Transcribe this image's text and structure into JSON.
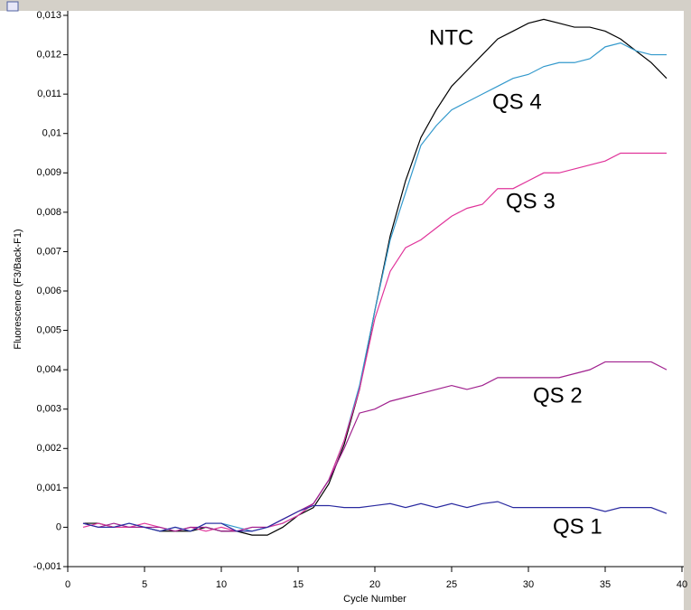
{
  "chart_data": {
    "type": "line",
    "y_label": "Fluorescence (F3/Back-F1)",
    "x_label": "Cycle Number",
    "x": [
      1,
      2,
      3,
      4,
      5,
      6,
      7,
      8,
      9,
      10,
      11,
      12,
      13,
      14,
      15,
      16,
      17,
      18,
      19,
      20,
      21,
      22,
      23,
      24,
      25,
      26,
      27,
      28,
      29,
      30,
      31,
      32,
      33,
      34,
      35,
      36,
      37,
      38,
      39
    ],
    "xlim": [
      0,
      40
    ],
    "xticks": [
      0,
      5,
      10,
      15,
      20,
      25,
      30,
      35,
      40
    ],
    "ylim": [
      -0.001,
      0.013
    ],
    "yticks": [
      {
        "value": -0.001,
        "label": "-0,001"
      },
      0,
      {
        "value": 0.001,
        "label": "0,001"
      },
      {
        "value": 0.002,
        "label": "0,002"
      },
      {
        "value": 0.003,
        "label": "0,003"
      },
      {
        "value": 0.004,
        "label": "0,004"
      },
      {
        "value": 0.005,
        "label": "0,005"
      },
      {
        "value": 0.006,
        "label": "0,006"
      },
      {
        "value": 0.007,
        "label": "0,007"
      },
      {
        "value": 0.008,
        "label": "0,008"
      },
      {
        "value": 0.009,
        "label": "0,009"
      },
      {
        "value": 0.01,
        "label": "0,01"
      },
      {
        "value": 0.011,
        "label": "0,011"
      },
      {
        "value": 0.012,
        "label": "0,012"
      },
      {
        "value": 0.013,
        "label": "0,013"
      }
    ],
    "grid": false,
    "series": [
      {
        "name": "NTC",
        "color": "#000000",
        "values": [
          0.0001,
          0.0001,
          0.0,
          0.0,
          0.0,
          -0.0001,
          -0.0001,
          -0.0001,
          0.0,
          -0.0001,
          -0.0001,
          -0.0002,
          -0.0002,
          0.0,
          0.0003,
          0.0005,
          0.0011,
          0.0021,
          0.0035,
          0.0055,
          0.0074,
          0.0088,
          0.0099,
          0.0106,
          0.0112,
          0.0116,
          0.012,
          0.0124,
          0.0126,
          0.0128,
          0.0129,
          0.0128,
          0.0127,
          0.0127,
          0.0126,
          0.0124,
          0.0121,
          0.0118,
          0.0114
        ]
      },
      {
        "name": "QS 4",
        "color": "#3399cc",
        "values": [
          0.0001,
          0.0,
          0.0,
          0.0001,
          0.0,
          -0.0001,
          0.0,
          -0.0001,
          0.0001,
          0.0001,
          0.0,
          -0.0001,
          0.0,
          0.0001,
          0.0003,
          0.0006,
          0.0012,
          0.0022,
          0.0036,
          0.0055,
          0.0073,
          0.0085,
          0.0097,
          0.0102,
          0.0106,
          0.0108,
          0.011,
          0.0112,
          0.0114,
          0.0115,
          0.0117,
          0.0118,
          0.0118,
          0.0119,
          0.0122,
          0.0123,
          0.0121,
          0.012,
          0.012
        ]
      },
      {
        "name": "QS 3",
        "color": "#e0339a",
        "values": [
          0.0,
          0.0001,
          0.0,
          0.0,
          0.0001,
          0.0,
          -0.0001,
          0.0,
          -0.0001,
          0.0,
          -0.0001,
          0.0,
          0.0,
          0.0001,
          0.0003,
          0.0006,
          0.0012,
          0.0022,
          0.0035,
          0.0053,
          0.0065,
          0.0071,
          0.0073,
          0.0076,
          0.0079,
          0.0081,
          0.0082,
          0.0086,
          0.0086,
          0.0088,
          0.009,
          0.009,
          0.0091,
          0.0092,
          0.0093,
          0.0095,
          0.0095,
          0.0095,
          0.0095
        ]
      },
      {
        "name": "QS 2",
        "color": "#a0208e",
        "values": [
          0.0001,
          0.0,
          0.0001,
          0.0,
          0.0,
          0.0,
          -0.0001,
          0.0,
          0.0,
          -0.0001,
          -0.0001,
          0.0,
          0.0,
          0.0002,
          0.0004,
          0.0006,
          0.0012,
          0.002,
          0.0029,
          0.003,
          0.0032,
          0.0033,
          0.0034,
          0.0035,
          0.0036,
          0.0035,
          0.0036,
          0.0038,
          0.0038,
          0.0038,
          0.0038,
          0.0038,
          0.0039,
          0.004,
          0.0042,
          0.0042,
          0.0042,
          0.0042,
          0.004
        ]
      },
      {
        "name": "QS 1",
        "color": "#2a2aa0",
        "values": [
          0.0001,
          0.0,
          0.0,
          0.0001,
          0.0,
          -0.0001,
          0.0,
          -0.0001,
          0.0001,
          0.0001,
          -0.0001,
          -0.0001,
          0.0,
          0.0002,
          0.0004,
          0.00055,
          0.00055,
          0.0005,
          0.0005,
          0.00055,
          0.0006,
          0.0005,
          0.0006,
          0.0005,
          0.0006,
          0.0005,
          0.0006,
          0.00065,
          0.0005,
          0.0005,
          0.0005,
          0.0005,
          0.0005,
          0.0005,
          0.0004,
          0.0005,
          0.0005,
          0.0005,
          0.00035
        ]
      }
    ]
  }
}
